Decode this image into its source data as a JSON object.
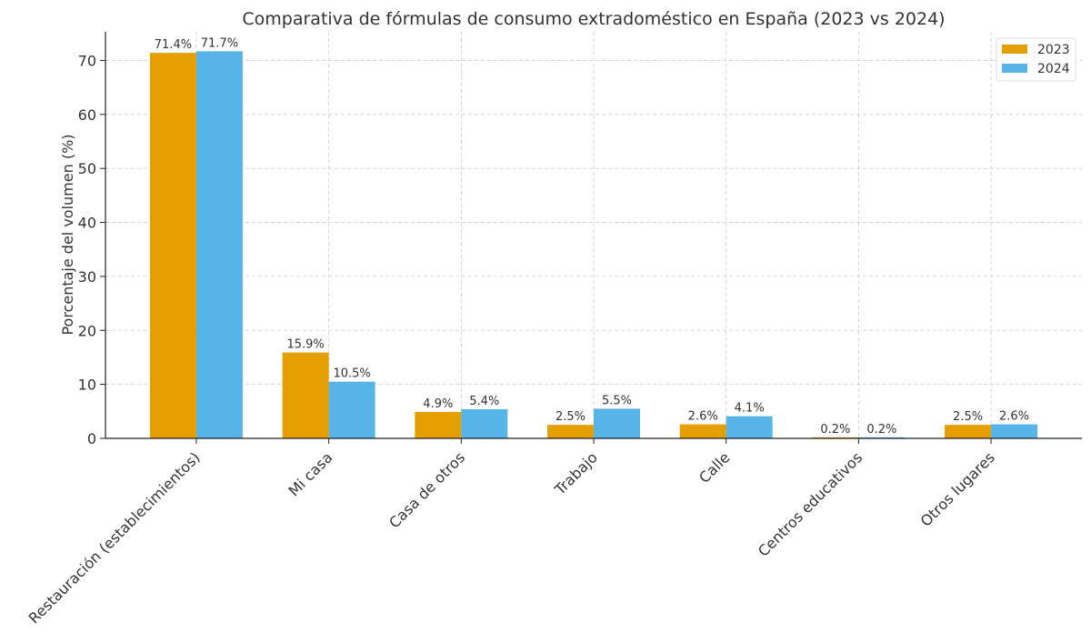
{
  "chart_data": {
    "type": "bar",
    "title": "Comparativa de fórmulas de consumo extradoméstico en España (2023 vs 2024)",
    "xlabel": "",
    "ylabel": "Porcentaje del volumen (%)",
    "ylim": [
      0,
      75.3
    ],
    "yticks": [
      0,
      10,
      20,
      30,
      40,
      50,
      60,
      70
    ],
    "grid": true,
    "legend_placement": "top-right",
    "categories": [
      "Restauración (establecimientos)",
      "Mi casa",
      "Casa de otros",
      "Trabajo",
      "Calle",
      "Centros educativos",
      "Otros lugares"
    ],
    "series": [
      {
        "name": "2023",
        "color": "#E69F00",
        "values": [
          71.4,
          15.9,
          4.9,
          2.5,
          2.6,
          0.2,
          2.5
        ],
        "labels": [
          "71.4%",
          "15.9%",
          "4.9%",
          "2.5%",
          "2.6%",
          "0.2%",
          "2.5%"
        ]
      },
      {
        "name": "2024",
        "color": "#56B4E9",
        "values": [
          71.7,
          10.5,
          5.4,
          5.5,
          4.1,
          0.2,
          2.6
        ],
        "labels": [
          "71.7%",
          "10.5%",
          "5.4%",
          "5.5%",
          "4.1%",
          "0.2%",
          "2.6%"
        ]
      }
    ]
  }
}
